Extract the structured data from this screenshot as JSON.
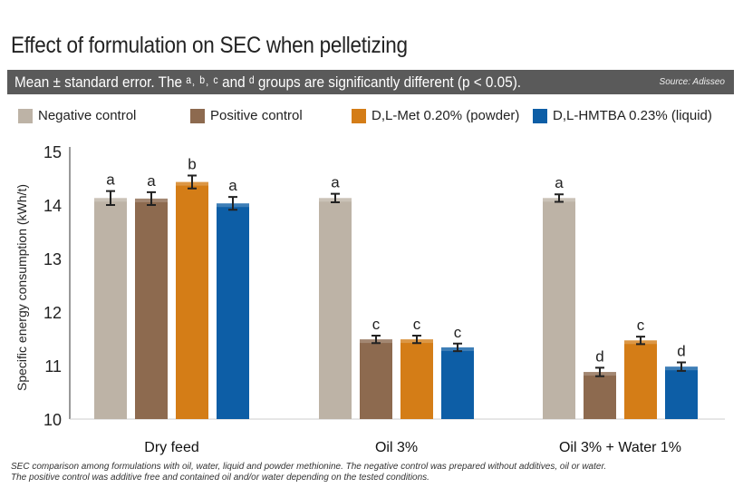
{
  "title": "Effect of formulation on SEC when pelletizing",
  "subtitle": "Mean ± standard error. The ᵃ˒ ᵇ˒ ᶜ and ᵈ groups are significantly different (p < 0.05).",
  "source": "Source: Adisseo",
  "footnote": [
    "SEC comparison among formulations with oil, water, liquid and powder methionine. The negative control was prepared without additives, oil or water.",
    "The positive control was additive free and contained oil and/or water depending on the tested conditions."
  ],
  "chart_data": {
    "type": "bar",
    "ylabel": "Specific energy consumption (kWh/t)",
    "ylim": [
      10,
      15
    ],
    "yticks": [
      "10",
      "11",
      "12",
      "13",
      "14",
      "15"
    ],
    "categories": [
      "Dry feed",
      "Oil 3%",
      "Oil 3% + Water 1%"
    ],
    "legend_position": "top",
    "series": [
      {
        "name": "Negative control",
        "color": "#bdb3a6",
        "values": [
          14.13,
          14.13,
          14.13
        ],
        "errors": [
          0.13,
          0.08,
          0.07
        ],
        "letters": [
          "a",
          "a",
          "a"
        ]
      },
      {
        "name": "Positive control",
        "color": "#8d6a4f",
        "values": [
          14.12,
          11.49,
          10.88
        ],
        "errors": [
          0.12,
          0.07,
          0.08
        ],
        "letters": [
          "a",
          "c",
          "d"
        ]
      },
      {
        "name": "D,L-Met 0.20% (powder)",
        "color": "#d47d17",
        "values": [
          14.43,
          11.49,
          11.47
        ],
        "errors": [
          0.12,
          0.07,
          0.07
        ],
        "letters": [
          "b",
          "c",
          "c"
        ]
      },
      {
        "name": "D,L-HMTBA 0.23% (liquid)",
        "color": "#0d5ea6",
        "values": [
          14.03,
          11.34,
          10.98
        ],
        "errors": [
          0.12,
          0.07,
          0.08
        ],
        "letters": [
          "a",
          "c",
          "d"
        ]
      }
    ]
  }
}
